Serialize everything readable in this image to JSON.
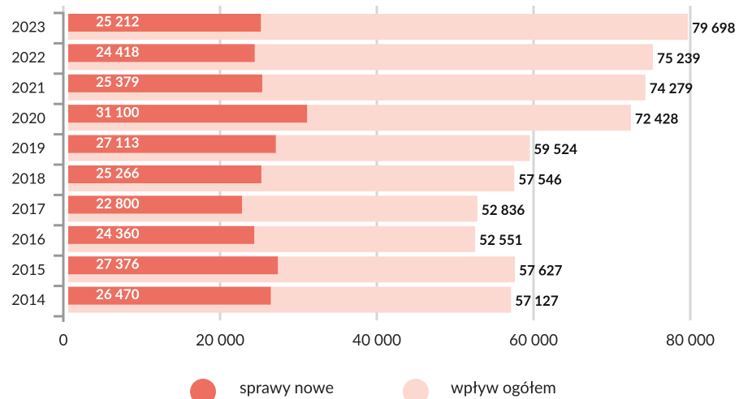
{
  "chart_data": {
    "type": "bar",
    "orientation": "horizontal",
    "categories": [
      "2023",
      "2022",
      "2021",
      "2020",
      "2019",
      "2018",
      "2017",
      "2016",
      "2015",
      "2014"
    ],
    "series": [
      {
        "name": "sprawy nowe",
        "color": "#ec6f61",
        "values": [
          25212,
          24418,
          25379,
          31100,
          27113,
          25266,
          22800,
          24360,
          27376,
          26470
        ],
        "value_labels": [
          "25 212",
          "24 418",
          "25 379",
          "31 100",
          "27 113",
          "25 266",
          "22 800",
          "24 360",
          "27 376",
          "26 470"
        ]
      },
      {
        "name": "wpływ ogółem",
        "color": "#fbd9d0",
        "values": [
          79698,
          75239,
          74279,
          72428,
          59524,
          57546,
          52836,
          52551,
          57627,
          57127
        ],
        "value_labels": [
          "79 698",
          "75 239",
          "74 279",
          "72 428",
          "59 524",
          "57 546",
          "52 836",
          "52 551",
          "57 627",
          "57 127"
        ]
      }
    ],
    "xlim": [
      0,
      80000
    ],
    "xticks": [
      0,
      {
        "value": 20000,
        "label": "20 000"
      },
      {
        "value": 40000,
        "label": "40 000"
      },
      {
        "value": 60000,
        "label": "60 000"
      },
      {
        "value": 80000,
        "label": "80 000"
      }
    ],
    "grid": true,
    "legend": "bottom"
  }
}
